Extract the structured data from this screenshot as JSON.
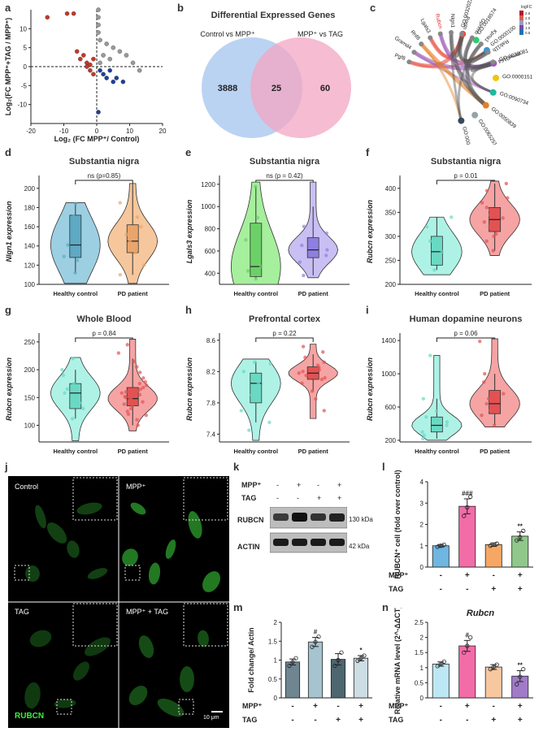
{
  "panel_letters": [
    "a",
    "b",
    "c",
    "d",
    "e",
    "f",
    "g",
    "h",
    "i",
    "j",
    "k",
    "l",
    "m",
    "n"
  ],
  "venn": {
    "title": "Differential Expressed Genes",
    "left_label": "Control vs MPP⁺",
    "right_label": "MPP⁺ vs TAG",
    "left_only": "3888",
    "overlap": "25",
    "right_only": "60",
    "left_color": "#a9c8f0",
    "right_color": "#f3a6c2"
  },
  "chord": {
    "genes": [
      "Pgf8",
      "Gramd4",
      "Rnf8",
      "Lgals3",
      "Rubcn",
      "Nlgn1",
      "Postn",
      "Gpnmb",
      "Kpna1",
      "Rab11b",
      "mmu0164"
    ],
    "highlight_gene": "Rubcn",
    "go_terms": [
      "GO:0032022",
      "GO:0018574",
      "GO:0000100",
      "GO:0038081",
      "GO:0000151",
      "GO:0090734",
      "GO:0050839",
      "GO:0065251",
      "GO:0005559"
    ],
    "legend_title": "logFC",
    "legend_ticks": [
      "2.5",
      "2.0",
      "1.5",
      "1.0",
      "0.5"
    ]
  },
  "axis_group_labels": [
    "Healthy control",
    "PD patient"
  ],
  "western": {
    "row_labels": [
      "MPP⁺",
      "TAG"
    ],
    "signs": [
      [
        "-",
        "+",
        "-",
        "+"
      ],
      [
        "-",
        "-",
        "+",
        "+"
      ]
    ],
    "bands": [
      "RUBCN",
      "ACTIN"
    ],
    "sizes": [
      "130 kDa",
      "42 kDa"
    ]
  },
  "micro": {
    "labels": [
      "Control",
      "MPP⁺",
      "TAG",
      "MPP⁺ + TAG"
    ],
    "stain": "RUBCN",
    "scale": "10 μm"
  },
  "chart_data": [
    {
      "panel": "a",
      "type": "scatter",
      "xlabel": "Log₂ (FC MPP⁺/ Control)",
      "ylabel": "Log₂(FC MPP⁺+TAG / MPP⁺)",
      "xlim": [
        -20,
        20
      ],
      "ylim": [
        -15,
        15
      ],
      "xticks": [
        -20,
        -10,
        0,
        10,
        20
      ],
      "yticks": [
        -10,
        -5,
        0,
        5,
        10
      ],
      "series": [
        {
          "color": "#c0392b",
          "points": [
            [
              -15,
              13
            ],
            [
              -9,
              14
            ],
            [
              -7,
              14
            ],
            [
              -6,
              4
            ],
            [
              -5,
              2
            ],
            [
              -4,
              3
            ],
            [
              -3,
              1
            ],
            [
              -2,
              0.5
            ],
            [
              -1,
              2
            ],
            [
              -2,
              -1
            ],
            [
              -1,
              -2
            ],
            [
              -3,
              0
            ]
          ]
        },
        {
          "color": "#999999",
          "points": [
            [
              0.5,
              15
            ],
            [
              0.5,
              13
            ],
            [
              0.5,
              11
            ],
            [
              0.5,
              9
            ],
            [
              1,
              7
            ],
            [
              3,
              6
            ],
            [
              5,
              5
            ],
            [
              7,
              4
            ],
            [
              9,
              3
            ],
            [
              11,
              1
            ],
            [
              13,
              -1
            ],
            [
              4,
              2
            ],
            [
              2,
              3
            ],
            [
              1,
              1
            ]
          ]
        },
        {
          "color": "#1f3f99",
          "points": [
            [
              0.5,
              -12
            ],
            [
              2,
              -2
            ],
            [
              3,
              -3
            ],
            [
              5,
              -4
            ],
            [
              6,
              -3
            ],
            [
              8,
              -4
            ],
            [
              1,
              -1
            ],
            [
              4,
              -1
            ]
          ]
        }
      ]
    },
    {
      "panel": "d",
      "type": "violin",
      "title": "Substantia nigra",
      "ylabel": "Nlgn1 expression",
      "ylim": [
        100,
        210
      ],
      "yticks": [
        100,
        120,
        140,
        160,
        180,
        200
      ],
      "pvalue": "ns (p=0.85)",
      "groups": [
        {
          "name": "Healthy control",
          "color": "#9ccfe2",
          "box_color": "#5ea9c4",
          "q1": 128,
          "median": 141,
          "q3": 172,
          "whisker_low": 112,
          "whisker_high": 185,
          "min": 101,
          "max": 185,
          "points": [
            112,
            125,
            129,
            141,
            171,
            184
          ]
        },
        {
          "name": "PD patient",
          "color": "#f6c79c",
          "box_color": "#eaa56c",
          "q1": 133,
          "median": 145,
          "q3": 162,
          "whisker_low": 110,
          "whisker_high": 205,
          "min": 101,
          "max": 205,
          "points": [
            110,
            120,
            133,
            145,
            152,
            160,
            170,
            185
          ]
        }
      ]
    },
    {
      "panel": "e",
      "type": "violin",
      "title": "Substantia nigra",
      "ylabel": "Lgals3 expression",
      "ylim": [
        300,
        1250
      ],
      "yticks": [
        400,
        600,
        800,
        1000,
        1200
      ],
      "pvalue": "ns (p = 0.42)",
      "groups": [
        {
          "name": "Healthy control",
          "color": "#a6ef9d",
          "box_color": "#6cd068",
          "q1": 370,
          "median": 460,
          "q3": 850,
          "whisker_low": 350,
          "whisker_high": 1180,
          "min": 300,
          "max": 1220,
          "points": [
            350,
            420,
            460,
            700,
            900,
            1180
          ]
        },
        {
          "name": "PD patient",
          "color": "#c9bff3",
          "box_color": "#8e7fe0",
          "q1": 540,
          "median": 610,
          "q3": 720,
          "whisker_low": 380,
          "whisker_high": 1000,
          "min": 360,
          "max": 1220,
          "points": [
            380,
            500,
            560,
            610,
            650,
            700,
            760,
            820
          ]
        }
      ]
    },
    {
      "panel": "f",
      "type": "violin",
      "title": "Substantia nigra",
      "ylabel": "Rubcn expression",
      "ylim": [
        200,
        420
      ],
      "yticks": [
        200,
        250,
        300,
        350,
        400
      ],
      "pvalue": "p = 0.01",
      "groups": [
        {
          "name": "Healthy control",
          "color": "#aef2e6",
          "box_color": "#6ad9c4",
          "q1": 240,
          "median": 268,
          "q3": 300,
          "whisker_low": 230,
          "whisker_high": 340,
          "min": 220,
          "max": 340,
          "points": [
            230,
            250,
            268,
            290,
            320,
            340
          ]
        },
        {
          "name": "PD patient",
          "color": "#f6a3a3",
          "box_color": "#e25252",
          "q1": 310,
          "median": 335,
          "q3": 360,
          "whisker_low": 270,
          "whisker_high": 410,
          "min": 260,
          "max": 415,
          "points": [
            270,
            290,
            305,
            320,
            330,
            338,
            345,
            355,
            370,
            380,
            395,
            410,
            300,
            360,
            325
          ]
        }
      ]
    },
    {
      "panel": "g",
      "type": "violin",
      "title": "Whole Blood",
      "ylabel": "Rubcn expression",
      "ylim": [
        70,
        260
      ],
      "yticks": [
        100,
        150,
        200,
        250
      ],
      "pvalue": "p = 0.84",
      "groups": [
        {
          "name": "Healthy control",
          "color": "#aef2e6",
          "box_color": "#6ad9c4",
          "q1": 130,
          "median": 158,
          "q3": 175,
          "whisker_low": 112,
          "whisker_high": 200,
          "min": 72,
          "max": 222,
          "points": [
            112,
            130,
            140,
            158,
            165,
            175,
            190,
            200,
            220
          ]
        },
        {
          "name": "PD patient",
          "color": "#f6a3a3",
          "box_color": "#e25252",
          "q1": 135,
          "median": 148,
          "q3": 168,
          "whisker_low": 100,
          "whisker_high": 220,
          "min": 90,
          "max": 255,
          "points": [
            100,
            110,
            118,
            125,
            130,
            135,
            140,
            142,
            145,
            148,
            150,
            152,
            155,
            158,
            160,
            165,
            168,
            172,
            178,
            185,
            195,
            205,
            215,
            230,
            245,
            120,
            138,
            150,
            162,
            175
          ]
        }
      ]
    },
    {
      "panel": "h",
      "type": "violin",
      "title": "Prefrontal cortex",
      "ylabel": "Rubcn expression",
      "ylim": [
        7.3,
        8.65
      ],
      "yticks": [
        7.4,
        7.8,
        8.2,
        8.6
      ],
      "pvalue": "p = 0.22",
      "groups": [
        {
          "name": "Healthy control",
          "color": "#aef2e6",
          "box_color": "#6ad9c4",
          "q1": 7.8,
          "median": 8.05,
          "q3": 8.18,
          "whisker_low": 7.55,
          "whisker_high": 8.33,
          "min": 7.32,
          "max": 8.36,
          "points": [
            7.45,
            7.55,
            7.7,
            7.9,
            8.05,
            8.1,
            8.2,
            8.3,
            8.32
          ]
        },
        {
          "name": "PD patient",
          "color": "#f6a3a3",
          "box_color": "#e25252",
          "q1": 8.1,
          "median": 8.18,
          "q3": 8.26,
          "whisker_low": 7.95,
          "whisker_high": 8.42,
          "min": 7.6,
          "max": 8.55,
          "points": [
            7.7,
            7.85,
            7.95,
            8.05,
            8.1,
            8.12,
            8.15,
            8.18,
            8.2,
            8.22,
            8.25,
            8.28,
            8.32,
            8.38,
            8.45,
            8.52
          ]
        }
      ]
    },
    {
      "panel": "i",
      "type": "violin",
      "title": "Human dopamine neurons",
      "ylabel": "Rubcn expression",
      "ylim": [
        180,
        1450
      ],
      "yticks": [
        200,
        600,
        1000,
        1400
      ],
      "pvalue": "p = 0.06",
      "groups": [
        {
          "name": "Healthy control",
          "color": "#aef2e6",
          "box_color": "#6ad9c4",
          "q1": 300,
          "median": 380,
          "q3": 480,
          "whisker_low": 220,
          "whisker_high": 700,
          "min": 200,
          "max": 1220,
          "points": [
            220,
            260,
            300,
            350,
            380,
            420,
            480,
            550,
            700,
            1220
          ]
        },
        {
          "name": "PD patient",
          "color": "#f6a3a3",
          "box_color": "#e25252",
          "q1": 520,
          "median": 640,
          "q3": 800,
          "whisker_low": 380,
          "whisker_high": 1000,
          "min": 360,
          "max": 1420,
          "points": [
            380,
            500,
            560,
            640,
            700,
            760,
            900,
            1000,
            1390
          ]
        }
      ]
    },
    {
      "panel": "l",
      "type": "bar",
      "ylabel": "RUBCN⁺ cell (fold over control)",
      "ylim": [
        0,
        4
      ],
      "yticks": [
        0,
        1,
        2,
        3,
        4
      ],
      "values": [
        1.0,
        2.85,
        1.05,
        1.45
      ],
      "errors": [
        0.06,
        0.35,
        0.08,
        0.2
      ],
      "colors": [
        "#6fb6e0",
        "#f26ca7",
        "#f7a764",
        "#8fc88a"
      ],
      "points": [
        [
          0.95,
          1.0,
          1.05
        ],
        [
          2.4,
          2.8,
          3.3
        ],
        [
          1.0,
          1.05,
          1.1
        ],
        [
          1.25,
          1.4,
          1.7
        ]
      ],
      "sig": [
        "",
        "###",
        "",
        "**"
      ]
    },
    {
      "panel": "m",
      "type": "bar",
      "ylabel": "Fold change/ Actin",
      "ylim": [
        0,
        2.0
      ],
      "yticks": [
        0,
        0.5,
        1.0,
        1.5,
        2.0
      ],
      "values": [
        0.95,
        1.48,
        1.02,
        1.05
      ],
      "errors": [
        0.08,
        0.12,
        0.15,
        0.07
      ],
      "colors": [
        "#6f8590",
        "#a5c4cf",
        "#4d6670",
        "#ccdde3"
      ],
      "points": [
        [
          0.85,
          0.95,
          1.05
        ],
        [
          1.35,
          1.48,
          1.62
        ],
        [
          0.85,
          1.0,
          1.2
        ],
        [
          0.98,
          1.05,
          1.12
        ]
      ],
      "sig": [
        "",
        "#",
        "",
        "*"
      ]
    },
    {
      "panel": "n",
      "type": "bar",
      "title": "Rubcn",
      "ylabel": "Relative mRNA level (2^-ΔΔCT)",
      "ylim": [
        0,
        2.5
      ],
      "yticks": [
        0,
        0.5,
        1.0,
        1.5,
        2.0,
        2.5
      ],
      "values": [
        1.12,
        1.72,
        1.02,
        0.72
      ],
      "errors": [
        0.07,
        0.18,
        0.08,
        0.18
      ],
      "colors": [
        "#bde8f3",
        "#f26ca7",
        "#f7c7a0",
        "#a17bc8"
      ],
      "points": [
        [
          1.05,
          1.12,
          1.2
        ],
        [
          1.5,
          1.72,
          2.0
        ],
        [
          0.95,
          1.02,
          1.1
        ],
        [
          0.45,
          0.7,
          0.95
        ]
      ],
      "sig": [
        "",
        "#",
        "",
        "**"
      ]
    }
  ],
  "bar_x_labels": [
    "MPP⁺",
    "TAG"
  ],
  "bar_signs": [
    [
      "-",
      "+",
      "-",
      "+"
    ],
    [
      "-",
      "-",
      "+",
      "+"
    ]
  ]
}
